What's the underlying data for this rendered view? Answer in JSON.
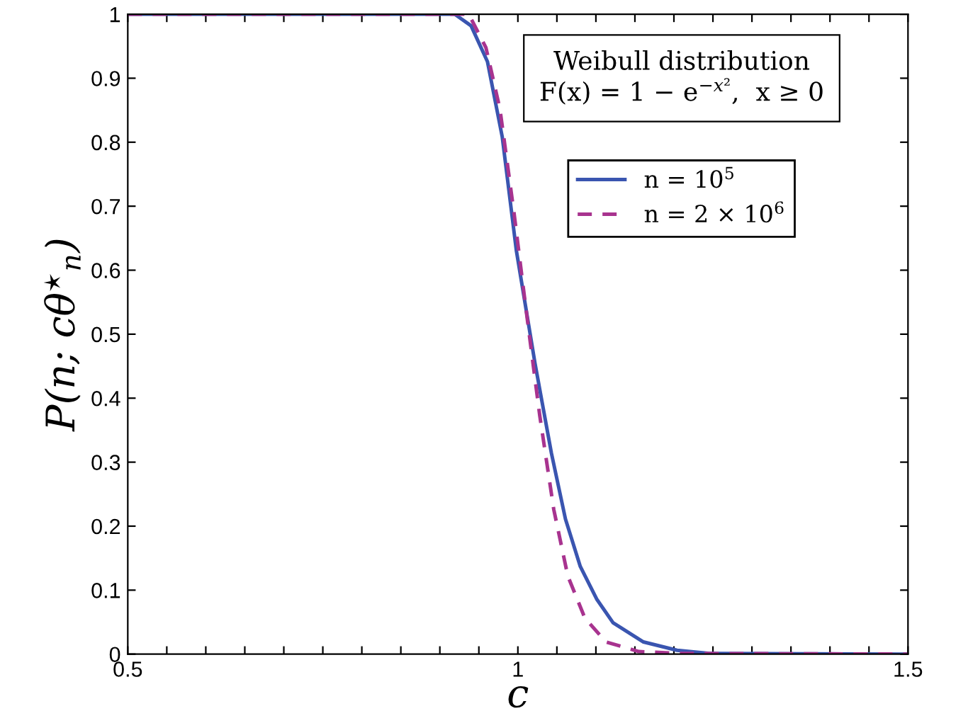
{
  "chart_data": {
    "type": "line",
    "xlabel": "c",
    "ylabel": "P(n; cθ$^{⋆}$$_{n}$)",
    "annotations": [
      "Weibull distribution\nF(x) = 1 − e$^{−x²}$,  x ≥ 0"
    ],
    "series": [
      {
        "name": "n = 10$^{5}$",
        "color": "#3a55b0",
        "line_style": "solid",
        "x": [
          0.5,
          0.919,
          0.94,
          0.961,
          0.98,
          0.998,
          1.022,
          1.043,
          1.061,
          1.08,
          1.101,
          1.122,
          1.161,
          1.204,
          1.246,
          1.5
        ],
        "values": [
          1,
          1,
          0.982,
          0.926,
          0.808,
          0.631,
          0.454,
          0.314,
          0.211,
          0.137,
          0.086,
          0.049,
          0.019,
          0.006,
          0.001,
          0
        ]
      },
      {
        "name": "n = 2 × 10$^{6}$",
        "color": "#a8338f",
        "line_style": "dashed",
        "x": [
          0.5,
          0.937,
          0.959,
          0.977,
          0.995,
          1.01,
          1.028,
          1.046,
          1.064,
          1.086,
          1.113,
          1.155,
          1.21,
          1.5
        ],
        "values": [
          1,
          1,
          0.948,
          0.852,
          0.69,
          0.543,
          0.373,
          0.226,
          0.122,
          0.056,
          0.019,
          0.004,
          0.001,
          0
        ]
      }
    ],
    "xlim": [
      0.5,
      1.5
    ],
    "xticks": [
      0.5,
      {
        "value": 0.55,
        "label": null
      },
      {
        "value": 0.6,
        "label": null
      },
      {
        "value": 0.65,
        "label": null
      },
      {
        "value": 0.7,
        "label": null
      },
      {
        "value": 0.75,
        "label": null
      },
      {
        "value": 0.8,
        "label": null
      },
      {
        "value": 0.85,
        "label": null
      },
      {
        "value": 0.9,
        "label": null
      },
      {
        "value": 0.95,
        "label": null
      },
      1,
      {
        "value": 1.05,
        "label": null
      },
      {
        "value": 1.1,
        "label": null
      },
      {
        "value": 1.15,
        "label": null
      },
      {
        "value": 1.2,
        "label": null
      },
      {
        "value": 1.25,
        "label": null
      },
      {
        "value": 1.3,
        "label": null
      },
      {
        "value": 1.35,
        "label": null
      },
      {
        "value": 1.4,
        "label": null
      },
      {
        "value": 1.45,
        "label": null
      },
      1.5
    ],
    "ylim": [
      0,
      1
    ],
    "yticks": [
      0,
      0.1,
      0.2,
      0.3,
      0.4,
      0.5,
      0.6,
      0.7,
      0.8,
      0.9,
      1
    ],
    "grid": false,
    "legend": "top right",
    "marker": "none"
  }
}
